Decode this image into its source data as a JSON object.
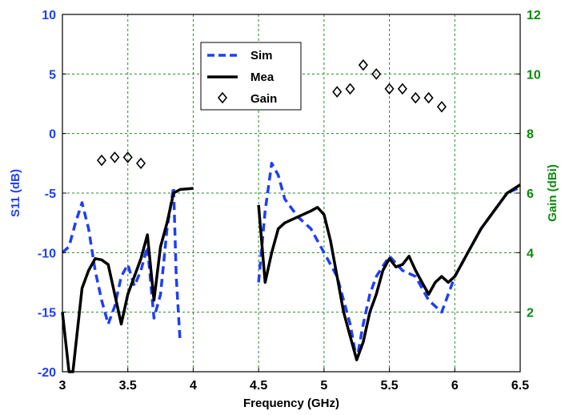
{
  "chart_data": {
    "type": "line",
    "xlabel": "Frequency (GHz)",
    "ylabel_left": "S11 (dB)",
    "ylabel_right": "Gain (dBi)",
    "xlim": [
      3,
      6.5
    ],
    "ylim_left": [
      -20,
      10
    ],
    "ylim_right": [
      0,
      12
    ],
    "x_ticks": [
      "3",
      "3.5",
      "4",
      "4.5",
      "5",
      "5.5",
      "6",
      "6.5"
    ],
    "y_left_ticks": [
      "10",
      "5",
      "0",
      "-5",
      "-10",
      "-15",
      "-20"
    ],
    "y_right_ticks": [
      "12",
      "10",
      "8",
      "6",
      "4",
      "2"
    ],
    "grid": true,
    "legend_position": "top-center",
    "colors": {
      "sim": "#1f3ff5",
      "mea": "#000000",
      "gain": "#000000",
      "left_axis": "#1f3ff5",
      "right_axis": "#0a8a0a",
      "grid": "#228b22"
    },
    "series": [
      {
        "name": "Sim",
        "axis": "left",
        "style": "dashed",
        "segments": [
          {
            "x": [
              3.0,
              3.05,
              3.1,
              3.15,
              3.2,
              3.25,
              3.3,
              3.35,
              3.4,
              3.45,
              3.5,
              3.55,
              3.6,
              3.65,
              3.7,
              3.75,
              3.8,
              3.85,
              3.87,
              3.9
            ],
            "y": [
              -10,
              -9.5,
              -7.5,
              -5.8,
              -8.0,
              -11.5,
              -14.0,
              -16.0,
              -14.5,
              -12.0,
              -11.0,
              -12.8,
              -11.5,
              -9.5,
              -15.5,
              -13.5,
              -8.0,
              -4.5,
              -12.0,
              -17.5
            ]
          },
          {
            "x": [
              4.5,
              4.55,
              4.6,
              4.65,
              4.7,
              4.8,
              4.9,
              5.0,
              5.1,
              5.2,
              5.25,
              5.3,
              5.35,
              5.4,
              5.5,
              5.6,
              5.7,
              5.8,
              5.85,
              5.9,
              6.0,
              6.1,
              6.2,
              6.3,
              6.4,
              6.5
            ],
            "y": [
              -12.5,
              -6.5,
              -2.5,
              -3.5,
              -5.5,
              -7.0,
              -8.0,
              -10.0,
              -12.0,
              -16.0,
              -19.0,
              -16.0,
              -13.5,
              -12.0,
              -10.3,
              -11.5,
              -12.0,
              -14.0,
              -14.5,
              -15.0,
              -12.0,
              -10.0,
              -8.0,
              -6.5,
              -5.0,
              -4.5
            ]
          }
        ]
      },
      {
        "name": "Mea",
        "axis": "left",
        "style": "solid",
        "segments": [
          {
            "x": [
              3.0,
              3.05,
              3.08,
              3.12,
              3.15,
              3.2,
              3.25,
              3.3,
              3.35,
              3.4,
              3.45,
              3.5,
              3.55,
              3.6,
              3.65,
              3.7,
              3.75,
              3.8,
              3.85,
              3.9,
              4.0
            ],
            "y": [
              -15.0,
              -20.0,
              -20.0,
              -16.0,
              -13.0,
              -11.5,
              -10.5,
              -10.6,
              -11.0,
              -13.5,
              -16.0,
              -13.5,
              -12.0,
              -10.5,
              -8.5,
              -14.0,
              -9.5,
              -7.5,
              -5.0,
              -4.7,
              -4.6
            ]
          },
          {
            "x": [
              4.5,
              4.55,
              4.6,
              4.65,
              4.7,
              4.8,
              4.9,
              4.95,
              5.0,
              5.05,
              5.1,
              5.15,
              5.2,
              5.25,
              5.3,
              5.35,
              5.4,
              5.45,
              5.5,
              5.55,
              5.6,
              5.65,
              5.7,
              5.75,
              5.8,
              5.85,
              5.9,
              5.95,
              6.0,
              6.1,
              6.2,
              6.3,
              6.4,
              6.5
            ],
            "y": [
              -6.0,
              -12.5,
              -10.0,
              -8.0,
              -7.5,
              -7.0,
              -6.5,
              -6.2,
              -6.8,
              -9.0,
              -12.0,
              -15.0,
              -17.0,
              -19.0,
              -17.5,
              -15.0,
              -13.5,
              -11.5,
              -10.5,
              -11.2,
              -11.0,
              -10.3,
              -11.5,
              -12.5,
              -13.5,
              -12.5,
              -12.0,
              -12.5,
              -12.0,
              -10.0,
              -8.0,
              -6.5,
              -5.0,
              -4.3
            ]
          }
        ]
      },
      {
        "name": "Gain",
        "axis": "right",
        "style": "markers",
        "x": [
          3.3,
          3.4,
          3.5,
          3.6,
          5.1,
          5.2,
          5.3,
          5.4,
          5.5,
          5.6,
          5.7,
          5.8,
          5.9
        ],
        "y": [
          7.1,
          7.2,
          7.2,
          7.0,
          9.4,
          9.5,
          10.3,
          10.0,
          9.5,
          9.5,
          9.2,
          9.2,
          8.9
        ]
      }
    ]
  }
}
